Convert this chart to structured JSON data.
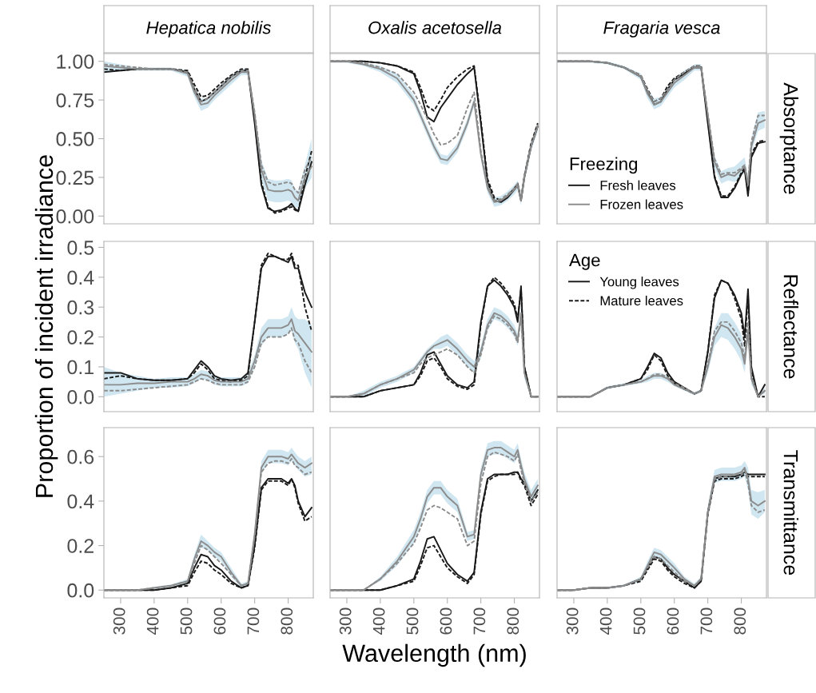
{
  "chart_data": [
    {
      "type": "line",
      "title": "Hepatica nobilis",
      "tick_labels": "y",
      "x": [
        250,
        300,
        350,
        400,
        450,
        500,
        520,
        540,
        560,
        580,
        600,
        630,
        660,
        680,
        700,
        720,
        740,
        760,
        780,
        800,
        810,
        820,
        830,
        850,
        870
      ],
      "xlim": [
        250,
        875
      ],
      "ylim": [
        -0.05,
        1.05
      ],
      "xticks": [
        300,
        400,
        500,
        600,
        700,
        800
      ],
      "yticks": [
        {
          "value": 0,
          "label": "0.00"
        },
        {
          "value": 0.25,
          "label": "0.25"
        },
        {
          "value": 0.5,
          "label": "0.50"
        },
        {
          "value": 0.75,
          "label": "0.75"
        },
        {
          "value": 1,
          "label": "1.00"
        }
      ],
      "series": [
        {
          "color": "#1a1a1a",
          "line_style": "solid",
          "values": [
            0.93,
            0.94,
            0.95,
            0.95,
            0.95,
            0.93,
            0.82,
            0.74,
            0.76,
            0.8,
            0.84,
            0.9,
            0.94,
            0.94,
            0.6,
            0.2,
            0.05,
            0.03,
            0.04,
            0.06,
            0.08,
            0.05,
            0.03,
            0.2,
            0.35
          ]
        },
        {
          "color": "#1a1a1a",
          "line_style": "dashed",
          "values": [
            0.95,
            0.94,
            0.95,
            0.95,
            0.95,
            0.94,
            0.85,
            0.77,
            0.78,
            0.82,
            0.86,
            0.91,
            0.95,
            0.95,
            0.62,
            0.22,
            0.06,
            0.02,
            0.03,
            0.05,
            0.06,
            0.04,
            0.03,
            0.25,
            0.42
          ]
        },
        {
          "color": "#8c8c8c",
          "line_style": "solid",
          "values": [
            0.97,
            0.96,
            0.95,
            0.95,
            0.95,
            0.92,
            0.8,
            0.72,
            0.73,
            0.78,
            0.82,
            0.88,
            0.93,
            0.93,
            0.65,
            0.3,
            0.17,
            0.16,
            0.16,
            0.17,
            0.16,
            0.12,
            0.1,
            0.25,
            0.32
          ],
          "lower": [
            0.93,
            0.94,
            0.94,
            0.94,
            0.94,
            0.9,
            0.77,
            0.68,
            0.7,
            0.75,
            0.79,
            0.85,
            0.91,
            0.91,
            0.6,
            0.24,
            0.1,
            0.09,
            0.09,
            0.1,
            0.09,
            0.06,
            0.05,
            0.18,
            0.25
          ],
          "upper": [
            1.0,
            0.98,
            0.96,
            0.96,
            0.96,
            0.94,
            0.83,
            0.76,
            0.76,
            0.81,
            0.85,
            0.91,
            0.95,
            0.95,
            0.7,
            0.36,
            0.24,
            0.23,
            0.23,
            0.24,
            0.23,
            0.18,
            0.16,
            0.33,
            0.5
          ]
        },
        {
          "color": "#8c8c8c",
          "line_style": "dashed",
          "values": [
            0.98,
            0.97,
            0.96,
            0.95,
            0.95,
            0.93,
            0.82,
            0.74,
            0.76,
            0.8,
            0.84,
            0.9,
            0.94,
            0.94,
            0.67,
            0.33,
            0.22,
            0.2,
            0.21,
            0.22,
            0.21,
            0.17,
            0.15,
            0.3,
            0.38
          ]
        }
      ]
    },
    {
      "type": "line",
      "title": "Oxalis acetosella",
      "tick_labels": false,
      "x": [
        250,
        300,
        350,
        400,
        450,
        500,
        520,
        540,
        560,
        580,
        600,
        630,
        660,
        680,
        700,
        720,
        740,
        760,
        780,
        800,
        810,
        820,
        830,
        850,
        870
      ],
      "xlim": [
        250,
        875
      ],
      "ylim": [
        -0.05,
        1.05
      ],
      "xticks": [
        300,
        400,
        500,
        600,
        700,
        800
      ],
      "series": [
        {
          "color": "#1a1a1a",
          "line_style": "solid",
          "values": [
            1.0,
            1.0,
            1.0,
            0.99,
            0.97,
            0.92,
            0.8,
            0.64,
            0.61,
            0.7,
            0.76,
            0.85,
            0.92,
            0.96,
            0.6,
            0.22,
            0.1,
            0.09,
            0.12,
            0.17,
            0.2,
            0.1,
            0.25,
            0.45,
            0.58
          ]
        },
        {
          "color": "#1a1a1a",
          "line_style": "dashed",
          "values": [
            1.0,
            1.0,
            1.0,
            0.99,
            0.97,
            0.93,
            0.83,
            0.71,
            0.68,
            0.75,
            0.83,
            0.9,
            0.95,
            0.97,
            0.62,
            0.24,
            0.12,
            0.1,
            0.13,
            0.18,
            0.21,
            0.11,
            0.26,
            0.47,
            0.6
          ]
        },
        {
          "color": "#8c8c8c",
          "line_style": "solid",
          "values": [
            1.0,
            1.0,
            0.98,
            0.95,
            0.89,
            0.75,
            0.65,
            0.55,
            0.45,
            0.37,
            0.36,
            0.44,
            0.6,
            0.74,
            0.4,
            0.18,
            0.09,
            0.1,
            0.13,
            0.17,
            0.2,
            0.1,
            0.25,
            0.45,
            0.58
          ],
          "lower": [
            0.99,
            0.99,
            0.97,
            0.93,
            0.86,
            0.72,
            0.62,
            0.52,
            0.42,
            0.34,
            0.33,
            0.41,
            0.57,
            0.71,
            0.37,
            0.15,
            0.06,
            0.07,
            0.1,
            0.14,
            0.17,
            0.07,
            0.22,
            0.42,
            0.55
          ],
          "upper": [
            1.0,
            1.0,
            0.99,
            0.97,
            0.92,
            0.78,
            0.68,
            0.58,
            0.48,
            0.4,
            0.39,
            0.47,
            0.63,
            0.77,
            0.43,
            0.21,
            0.12,
            0.13,
            0.16,
            0.2,
            0.23,
            0.13,
            0.28,
            0.48,
            0.61
          ]
        },
        {
          "color": "#8c8c8c",
          "line_style": "dashed",
          "values": [
            1.0,
            1.0,
            0.99,
            0.96,
            0.92,
            0.8,
            0.72,
            0.63,
            0.53,
            0.46,
            0.47,
            0.52,
            0.7,
            0.8,
            0.42,
            0.2,
            0.1,
            0.11,
            0.14,
            0.18,
            0.21,
            0.11,
            0.26,
            0.46,
            0.59
          ]
        }
      ]
    },
    {
      "type": "line",
      "title": "Fragaria vesca",
      "y2label": "Absorptance",
      "tick_labels": false,
      "legend": "bottom left",
      "legend_title": "Freezing",
      "x": [
        250,
        300,
        350,
        400,
        450,
        500,
        520,
        540,
        560,
        580,
        600,
        630,
        660,
        680,
        700,
        720,
        740,
        760,
        780,
        800,
        810,
        820,
        830,
        850,
        870
      ],
      "xlim": [
        250,
        875
      ],
      "ylim": [
        -0.05,
        1.05
      ],
      "xticks": [
        300,
        400,
        500,
        600,
        700,
        800
      ],
      "series": [
        {
          "name": "Fresh leaves",
          "color": "#1a1a1a",
          "line_style": "solid",
          "values": [
            1.0,
            1.0,
            1.0,
            0.99,
            0.96,
            0.9,
            0.8,
            0.72,
            0.74,
            0.82,
            0.88,
            0.92,
            0.96,
            0.96,
            0.6,
            0.25,
            0.12,
            0.12,
            0.18,
            0.27,
            0.3,
            0.13,
            0.38,
            0.47,
            0.48
          ]
        },
        {
          "color": "#1a1a1a",
          "line_style": "dashed",
          "values": [
            1.0,
            1.0,
            1.0,
            0.99,
            0.96,
            0.91,
            0.82,
            0.74,
            0.76,
            0.84,
            0.89,
            0.93,
            0.97,
            0.97,
            0.62,
            0.26,
            0.13,
            0.13,
            0.19,
            0.28,
            0.31,
            0.14,
            0.4,
            0.48,
            0.49
          ]
        },
        {
          "name": "Frozen leaves",
          "color": "#8c8c8c",
          "line_style": "solid",
          "values": [
            1.0,
            1.0,
            1.0,
            0.99,
            0.96,
            0.9,
            0.79,
            0.72,
            0.74,
            0.8,
            0.86,
            0.91,
            0.96,
            0.96,
            0.65,
            0.35,
            0.25,
            0.27,
            0.26,
            0.3,
            0.32,
            0.2,
            0.45,
            0.6,
            0.62
          ],
          "lower": [
            0.99,
            0.99,
            0.99,
            0.98,
            0.95,
            0.88,
            0.76,
            0.69,
            0.71,
            0.77,
            0.83,
            0.88,
            0.94,
            0.94,
            0.61,
            0.31,
            0.21,
            0.23,
            0.22,
            0.26,
            0.28,
            0.16,
            0.41,
            0.55,
            0.57
          ],
          "upper": [
            1.0,
            1.0,
            1.0,
            1.0,
            0.97,
            0.92,
            0.82,
            0.76,
            0.77,
            0.83,
            0.89,
            0.94,
            0.98,
            0.98,
            0.69,
            0.39,
            0.29,
            0.31,
            0.32,
            0.36,
            0.38,
            0.25,
            0.5,
            0.67,
            0.68
          ]
        },
        {
          "color": "#8c8c8c",
          "line_style": "dashed",
          "values": [
            1.0,
            1.0,
            1.0,
            0.99,
            0.96,
            0.91,
            0.81,
            0.74,
            0.76,
            0.82,
            0.88,
            0.93,
            0.97,
            0.97,
            0.66,
            0.37,
            0.27,
            0.28,
            0.28,
            0.31,
            0.33,
            0.22,
            0.48,
            0.65,
            0.65
          ]
        }
      ]
    },
    {
      "type": "line",
      "ylabel": "Proportion of incident irradiance",
      "tick_labels": "y",
      "x": [
        250,
        300,
        350,
        400,
        450,
        500,
        520,
        540,
        560,
        580,
        600,
        630,
        660,
        680,
        700,
        720,
        740,
        760,
        780,
        800,
        810,
        820,
        830,
        850,
        870
      ],
      "xlim": [
        250,
        875
      ],
      "ylim": [
        -0.05,
        0.52
      ],
      "xticks": [
        300,
        400,
        500,
        600,
        700,
        800
      ],
      "yticks": [
        {
          "value": 0,
          "label": "0.0"
        },
        {
          "value": 0.1,
          "label": "0.1"
        },
        {
          "value": 0.2,
          "label": "0.2"
        },
        {
          "value": 0.3,
          "label": "0.3"
        },
        {
          "value": 0.4,
          "label": "0.4"
        },
        {
          "value": 0.5,
          "label": "0.5"
        }
      ],
      "series": [
        {
          "color": "#1a1a1a",
          "line_style": "solid",
          "values": [
            0.08,
            0.08,
            0.06,
            0.055,
            0.055,
            0.06,
            0.09,
            0.12,
            0.1,
            0.07,
            0.06,
            0.055,
            0.06,
            0.08,
            0.25,
            0.43,
            0.47,
            0.47,
            0.46,
            0.45,
            0.47,
            0.43,
            0.43,
            0.35,
            0.3
          ]
        },
        {
          "color": "#1a1a1a",
          "line_style": "dashed",
          "values": [
            0.06,
            0.07,
            0.06,
            0.055,
            0.055,
            0.06,
            0.08,
            0.11,
            0.09,
            0.06,
            0.055,
            0.05,
            0.055,
            0.07,
            0.25,
            0.44,
            0.48,
            0.47,
            0.46,
            0.46,
            0.48,
            0.44,
            0.44,
            0.3,
            0.22
          ]
        },
        {
          "color": "#8c8c8c",
          "line_style": "solid",
          "values": [
            0.04,
            0.04,
            0.045,
            0.045,
            0.05,
            0.05,
            0.06,
            0.075,
            0.07,
            0.055,
            0.05,
            0.05,
            0.05,
            0.06,
            0.12,
            0.2,
            0.23,
            0.23,
            0.23,
            0.24,
            0.26,
            0.22,
            0.21,
            0.18,
            0.15
          ],
          "lower": [
            0.0,
            0.01,
            0.02,
            0.03,
            0.03,
            0.035,
            0.045,
            0.06,
            0.055,
            0.04,
            0.035,
            0.035,
            0.035,
            0.045,
            0.1,
            0.17,
            0.2,
            0.2,
            0.2,
            0.21,
            0.22,
            0.18,
            0.16,
            0.08,
            0.03
          ],
          "upper": [
            0.1,
            0.08,
            0.07,
            0.06,
            0.065,
            0.065,
            0.075,
            0.09,
            0.085,
            0.07,
            0.065,
            0.065,
            0.065,
            0.075,
            0.14,
            0.23,
            0.26,
            0.26,
            0.26,
            0.27,
            0.3,
            0.27,
            0.26,
            0.26,
            0.24
          ]
        },
        {
          "color": "#8c8c8c",
          "line_style": "dashed",
          "values": [
            0.02,
            0.02,
            0.025,
            0.03,
            0.035,
            0.04,
            0.05,
            0.06,
            0.055,
            0.045,
            0.04,
            0.04,
            0.04,
            0.05,
            0.1,
            0.18,
            0.2,
            0.2,
            0.2,
            0.21,
            0.23,
            0.19,
            0.18,
            0.12,
            0.08
          ]
        }
      ]
    },
    {
      "type": "line",
      "tick_labels": false,
      "x": [
        250,
        300,
        350,
        400,
        450,
        500,
        520,
        540,
        560,
        580,
        600,
        630,
        660,
        680,
        700,
        720,
        740,
        760,
        780,
        800,
        810,
        820,
        830,
        850,
        870
      ],
      "xlim": [
        250,
        875
      ],
      "ylim": [
        -0.05,
        0.52
      ],
      "xticks": [
        300,
        400,
        500,
        600,
        700,
        800
      ],
      "series": [
        {
          "color": "#1a1a1a",
          "line_style": "solid",
          "values": [
            0.0,
            0.0,
            0.0,
            0.02,
            0.03,
            0.04,
            0.08,
            0.14,
            0.15,
            0.11,
            0.07,
            0.04,
            0.03,
            0.05,
            0.25,
            0.37,
            0.39,
            0.37,
            0.34,
            0.3,
            0.25,
            0.37,
            0.1,
            0.0,
            0.0
          ]
        },
        {
          "color": "#1a1a1a",
          "line_style": "dashed",
          "values": [
            0.0,
            0.0,
            0.0,
            0.02,
            0.03,
            0.04,
            0.07,
            0.12,
            0.13,
            0.1,
            0.06,
            0.035,
            0.025,
            0.04,
            0.24,
            0.37,
            0.4,
            0.38,
            0.35,
            0.31,
            0.26,
            0.36,
            0.1,
            0.0,
            0.0
          ]
        },
        {
          "color": "#8c8c8c",
          "line_style": "solid",
          "values": [
            0.0,
            0.0,
            0.01,
            0.04,
            0.06,
            0.09,
            0.12,
            0.15,
            0.17,
            0.18,
            0.19,
            0.16,
            0.12,
            0.1,
            0.15,
            0.24,
            0.28,
            0.27,
            0.25,
            0.22,
            0.19,
            0.28,
            0.08,
            0.0,
            0.0
          ],
          "lower": [
            0.0,
            0.0,
            0.0,
            0.03,
            0.05,
            0.08,
            0.11,
            0.14,
            0.16,
            0.16,
            0.17,
            0.14,
            0.1,
            0.08,
            0.13,
            0.22,
            0.26,
            0.25,
            0.23,
            0.2,
            0.17,
            0.26,
            0.06,
            0.0,
            0.0
          ],
          "upper": [
            0.0,
            0.0,
            0.02,
            0.05,
            0.07,
            0.1,
            0.13,
            0.16,
            0.18,
            0.2,
            0.21,
            0.18,
            0.14,
            0.12,
            0.17,
            0.26,
            0.3,
            0.29,
            0.27,
            0.24,
            0.21,
            0.3,
            0.1,
            0.0,
            0.0
          ]
        },
        {
          "color": "#8c8c8c",
          "line_style": "dashed",
          "values": [
            0.0,
            0.0,
            0.01,
            0.04,
            0.06,
            0.08,
            0.11,
            0.13,
            0.14,
            0.15,
            0.16,
            0.14,
            0.1,
            0.08,
            0.14,
            0.23,
            0.27,
            0.26,
            0.24,
            0.21,
            0.18,
            0.27,
            0.08,
            0.0,
            0.0
          ]
        }
      ]
    },
    {
      "type": "line",
      "y2label": "Reflectance",
      "tick_labels": false,
      "legend": "top left",
      "legend_title": "Age",
      "x": [
        250,
        300,
        350,
        400,
        450,
        500,
        520,
        540,
        560,
        580,
        600,
        630,
        660,
        680,
        700,
        720,
        740,
        760,
        780,
        800,
        810,
        820,
        830,
        850,
        870
      ],
      "xlim": [
        250,
        875
      ],
      "ylim": [
        -0.05,
        0.52
      ],
      "xticks": [
        300,
        400,
        500,
        600,
        700,
        800
      ],
      "series": [
        {
          "name": "Young leaves",
          "color": "#1a1a1a",
          "line_style": "solid",
          "values": [
            0.0,
            0.0,
            0.0,
            0.03,
            0.04,
            0.06,
            0.1,
            0.145,
            0.13,
            0.08,
            0.05,
            0.03,
            0.01,
            0.02,
            0.15,
            0.33,
            0.39,
            0.38,
            0.34,
            0.28,
            0.2,
            0.36,
            0.1,
            0.0,
            0.04
          ]
        },
        {
          "name": "Mature leaves",
          "color": "#1a1a1a",
          "line_style": "dashed",
          "values": [
            0.0,
            0.0,
            0.0,
            0.03,
            0.04,
            0.06,
            0.09,
            0.14,
            0.12,
            0.07,
            0.045,
            0.025,
            0.01,
            0.02,
            0.15,
            0.34,
            0.39,
            0.38,
            0.33,
            0.26,
            0.17,
            0.34,
            0.08,
            0.0,
            0.0
          ]
        },
        {
          "color": "#8c8c8c",
          "line_style": "solid",
          "values": [
            0.0,
            0.0,
            0.0,
            0.03,
            0.04,
            0.05,
            0.06,
            0.07,
            0.07,
            0.06,
            0.04,
            0.025,
            0.01,
            0.02,
            0.1,
            0.2,
            0.24,
            0.23,
            0.2,
            0.16,
            0.11,
            0.22,
            0.06,
            0.0,
            0.02
          ],
          "lower": [
            0.0,
            0.0,
            0.0,
            0.025,
            0.035,
            0.045,
            0.05,
            0.06,
            0.06,
            0.05,
            0.035,
            0.02,
            0.005,
            0.015,
            0.08,
            0.17,
            0.2,
            0.19,
            0.16,
            0.12,
            0.08,
            0.19,
            0.04,
            0.0,
            0.01
          ],
          "upper": [
            0.0,
            0.0,
            0.0,
            0.035,
            0.045,
            0.055,
            0.07,
            0.08,
            0.08,
            0.07,
            0.045,
            0.03,
            0.015,
            0.025,
            0.12,
            0.23,
            0.28,
            0.28,
            0.25,
            0.21,
            0.15,
            0.25,
            0.08,
            0.0,
            0.03
          ]
        },
        {
          "color": "#8c8c8c",
          "line_style": "dashed",
          "values": [
            0.0,
            0.0,
            0.0,
            0.03,
            0.04,
            0.05,
            0.06,
            0.075,
            0.075,
            0.065,
            0.045,
            0.03,
            0.01,
            0.02,
            0.11,
            0.22,
            0.25,
            0.25,
            0.22,
            0.18,
            0.13,
            0.25,
            0.07,
            0.0,
            0.02
          ]
        }
      ]
    },
    {
      "type": "line",
      "x": [
        250,
        300,
        350,
        400,
        450,
        500,
        520,
        540,
        560,
        580,
        600,
        630,
        660,
        680,
        700,
        720,
        740,
        760,
        780,
        800,
        810,
        820,
        830,
        850,
        870
      ],
      "xlim": [
        250,
        875
      ],
      "ylim": [
        -0.035,
        0.73
      ],
      "xticks": [
        300,
        400,
        500,
        600,
        700,
        800
      ],
      "yticks": [
        {
          "value": 0,
          "label": "0.0"
        },
        {
          "value": 0.2,
          "label": "0.2"
        },
        {
          "value": 0.4,
          "label": "0.4"
        },
        {
          "value": 0.6,
          "label": "0.6"
        }
      ],
      "series": [
        {
          "color": "#1a1a1a",
          "line_style": "solid",
          "values": [
            0.0,
            0.0,
            0.0,
            0.0,
            0.01,
            0.03,
            0.1,
            0.16,
            0.15,
            0.11,
            0.09,
            0.04,
            0.01,
            0.02,
            0.2,
            0.46,
            0.5,
            0.5,
            0.5,
            0.48,
            0.5,
            0.47,
            0.4,
            0.33,
            0.37
          ]
        },
        {
          "color": "#1a1a1a",
          "line_style": "dashed",
          "values": [
            0.0,
            0.0,
            0.0,
            0.0,
            0.01,
            0.02,
            0.08,
            0.13,
            0.12,
            0.09,
            0.07,
            0.03,
            0.01,
            0.02,
            0.19,
            0.45,
            0.49,
            0.49,
            0.49,
            0.47,
            0.5,
            0.46,
            0.39,
            0.31,
            0.33
          ]
        },
        {
          "color": "#8c8c8c",
          "line_style": "solid",
          "values": [
            0.0,
            0.0,
            0.0,
            0.01,
            0.02,
            0.04,
            0.14,
            0.22,
            0.2,
            0.17,
            0.15,
            0.08,
            0.02,
            0.03,
            0.25,
            0.55,
            0.6,
            0.6,
            0.6,
            0.59,
            0.61,
            0.59,
            0.57,
            0.55,
            0.57
          ],
          "lower": [
            0.0,
            0.0,
            0.0,
            0.005,
            0.015,
            0.03,
            0.12,
            0.19,
            0.18,
            0.15,
            0.13,
            0.06,
            0.01,
            0.02,
            0.22,
            0.52,
            0.57,
            0.57,
            0.57,
            0.56,
            0.58,
            0.56,
            0.54,
            0.51,
            0.52
          ],
          "upper": [
            0.0,
            0.0,
            0.0,
            0.015,
            0.025,
            0.05,
            0.16,
            0.25,
            0.22,
            0.19,
            0.17,
            0.1,
            0.03,
            0.04,
            0.28,
            0.58,
            0.63,
            0.63,
            0.63,
            0.62,
            0.64,
            0.62,
            0.6,
            0.58,
            0.6
          ]
        },
        {
          "color": "#8c8c8c",
          "line_style": "dashed",
          "values": [
            0.0,
            0.0,
            0.0,
            0.01,
            0.02,
            0.04,
            0.12,
            0.2,
            0.18,
            0.15,
            0.12,
            0.07,
            0.02,
            0.03,
            0.24,
            0.53,
            0.57,
            0.58,
            0.58,
            0.57,
            0.59,
            0.56,
            0.55,
            0.52,
            0.53
          ]
        }
      ]
    },
    {
      "type": "line",
      "xlabel": "Wavelength (nm)",
      "tick_labels": "x",
      "x": [
        250,
        300,
        350,
        400,
        450,
        500,
        520,
        540,
        560,
        580,
        600,
        630,
        660,
        680,
        700,
        720,
        740,
        760,
        780,
        800,
        810,
        820,
        830,
        850,
        870
      ],
      "xlim": [
        250,
        875
      ],
      "ylim": [
        -0.035,
        0.73
      ],
      "xticks": [
        300,
        400,
        500,
        600,
        700,
        800
      ],
      "series": [
        {
          "color": "#1a1a1a",
          "line_style": "solid",
          "values": [
            0.0,
            0.0,
            0.0,
            0.0,
            0.02,
            0.05,
            0.13,
            0.23,
            0.24,
            0.18,
            0.12,
            0.07,
            0.04,
            0.08,
            0.35,
            0.5,
            0.52,
            0.52,
            0.52,
            0.53,
            0.53,
            0.5,
            0.48,
            0.4,
            0.45
          ]
        },
        {
          "color": "#1a1a1a",
          "line_style": "dashed",
          "values": [
            0.0,
            0.0,
            0.0,
            0.0,
            0.02,
            0.04,
            0.11,
            0.19,
            0.2,
            0.15,
            0.1,
            0.06,
            0.03,
            0.07,
            0.34,
            0.49,
            0.51,
            0.52,
            0.52,
            0.52,
            0.53,
            0.49,
            0.47,
            0.38,
            0.43
          ]
        },
        {
          "color": "#8c8c8c",
          "line_style": "solid",
          "values": [
            0.0,
            0.0,
            0.0,
            0.05,
            0.13,
            0.24,
            0.32,
            0.42,
            0.46,
            0.46,
            0.42,
            0.38,
            0.24,
            0.25,
            0.52,
            0.63,
            0.64,
            0.64,
            0.62,
            0.6,
            0.63,
            0.56,
            0.5,
            0.42,
            0.47
          ],
          "lower": [
            0.0,
            0.0,
            0.0,
            0.04,
            0.11,
            0.21,
            0.29,
            0.39,
            0.43,
            0.43,
            0.39,
            0.35,
            0.22,
            0.23,
            0.49,
            0.6,
            0.61,
            0.61,
            0.59,
            0.57,
            0.6,
            0.53,
            0.47,
            0.39,
            0.44
          ],
          "upper": [
            0.0,
            0.0,
            0.0,
            0.06,
            0.15,
            0.27,
            0.35,
            0.45,
            0.49,
            0.49,
            0.45,
            0.41,
            0.26,
            0.27,
            0.55,
            0.66,
            0.67,
            0.67,
            0.65,
            0.63,
            0.66,
            0.59,
            0.53,
            0.45,
            0.5
          ]
        },
        {
          "color": "#8c8c8c",
          "line_style": "dashed",
          "values": [
            0.0,
            0.0,
            0.0,
            0.05,
            0.12,
            0.21,
            0.28,
            0.36,
            0.38,
            0.37,
            0.35,
            0.32,
            0.2,
            0.22,
            0.48,
            0.6,
            0.62,
            0.61,
            0.6,
            0.58,
            0.61,
            0.54,
            0.48,
            0.4,
            0.44
          ]
        }
      ]
    },
    {
      "type": "line",
      "y2label": "Transmittance",
      "tick_labels": "x",
      "x": [
        250,
        300,
        350,
        400,
        450,
        500,
        520,
        540,
        560,
        580,
        600,
        630,
        660,
        680,
        700,
        720,
        740,
        760,
        780,
        800,
        810,
        820,
        830,
        850,
        870
      ],
      "xlim": [
        250,
        875
      ],
      "ylim": [
        -0.035,
        0.73
      ],
      "xticks": [
        300,
        400,
        500,
        600,
        700,
        800
      ],
      "series": [
        {
          "color": "#1a1a1a",
          "line_style": "solid",
          "values": [
            0.0,
            0.0,
            0.01,
            0.01,
            0.02,
            0.05,
            0.1,
            0.15,
            0.14,
            0.1,
            0.07,
            0.04,
            0.01,
            0.04,
            0.35,
            0.5,
            0.51,
            0.51,
            0.51,
            0.52,
            0.53,
            0.52,
            0.52,
            0.52,
            0.52
          ]
        },
        {
          "color": "#1a1a1a",
          "line_style": "dashed",
          "values": [
            0.0,
            0.0,
            0.01,
            0.01,
            0.02,
            0.04,
            0.09,
            0.14,
            0.13,
            0.09,
            0.06,
            0.03,
            0.01,
            0.04,
            0.34,
            0.49,
            0.5,
            0.5,
            0.5,
            0.51,
            0.52,
            0.51,
            0.51,
            0.51,
            0.51
          ]
        },
        {
          "color": "#8c8c8c",
          "line_style": "solid",
          "values": [
            0.0,
            0.0,
            0.01,
            0.01,
            0.02,
            0.05,
            0.11,
            0.17,
            0.16,
            0.13,
            0.1,
            0.05,
            0.02,
            0.05,
            0.35,
            0.51,
            0.52,
            0.52,
            0.52,
            0.53,
            0.55,
            0.5,
            0.4,
            0.38,
            0.4
          ],
          "lower": [
            0.0,
            0.0,
            0.005,
            0.005,
            0.015,
            0.04,
            0.09,
            0.15,
            0.14,
            0.11,
            0.08,
            0.04,
            0.01,
            0.04,
            0.32,
            0.48,
            0.49,
            0.49,
            0.49,
            0.5,
            0.51,
            0.45,
            0.34,
            0.32,
            0.35
          ],
          "upper": [
            0.0,
            0.0,
            0.015,
            0.015,
            0.025,
            0.06,
            0.13,
            0.19,
            0.18,
            0.15,
            0.12,
            0.06,
            0.03,
            0.06,
            0.38,
            0.54,
            0.55,
            0.55,
            0.55,
            0.56,
            0.58,
            0.55,
            0.45,
            0.44,
            0.45
          ]
        },
        {
          "color": "#8c8c8c",
          "line_style": "dashed",
          "values": [
            0.0,
            0.0,
            0.01,
            0.01,
            0.02,
            0.05,
            0.1,
            0.15,
            0.14,
            0.11,
            0.08,
            0.04,
            0.02,
            0.05,
            0.34,
            0.5,
            0.51,
            0.51,
            0.52,
            0.52,
            0.54,
            0.48,
            0.38,
            0.35,
            0.36
          ]
        }
      ]
    }
  ]
}
